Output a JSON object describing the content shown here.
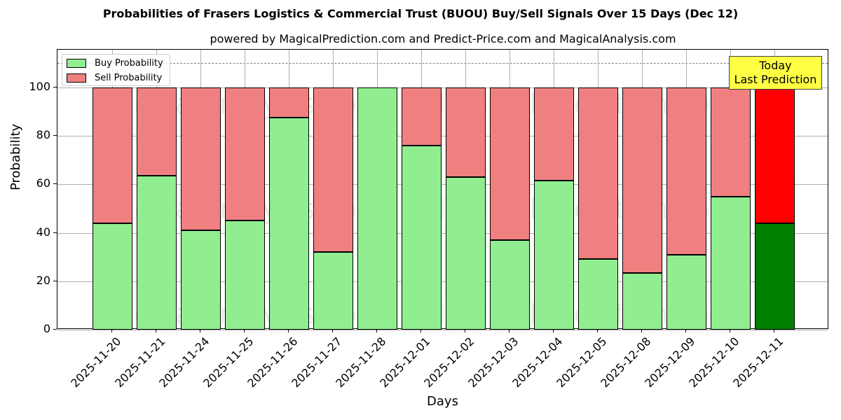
{
  "chart_data": {
    "type": "bar",
    "stacked": true,
    "title": "Probabilities of Frasers Logistics & Commercial Trust (BUOU) Buy/Sell Signals Over 15 Days (Dec 12)",
    "subtitle": "powered by MagicalPrediction.com and Predict-Price.com and MagicalAnalysis.com",
    "xlabel": "Days",
    "ylabel": "Probability",
    "ylim": [
      0,
      115
    ],
    "yticks": [
      0,
      20,
      40,
      60,
      80,
      100
    ],
    "grid": true,
    "legend_position": "upper left",
    "threshold_line": 110,
    "categories": [
      "2025-11-20",
      "2025-11-21",
      "2025-11-24",
      "2025-11-25",
      "2025-11-26",
      "2025-11-27",
      "2025-11-28",
      "2025-12-01",
      "2025-12-02",
      "2025-12-03",
      "2025-12-04",
      "2025-12-05",
      "2025-12-08",
      "2025-12-09",
      "2025-12-10",
      "2025-12-11"
    ],
    "series": [
      {
        "name": "Buy Probability",
        "color": "#90ee90",
        "values": [
          44,
          63.6,
          41,
          45,
          87.6,
          32,
          100,
          76,
          63,
          37,
          61.6,
          29.2,
          23.4,
          31,
          55,
          44
        ]
      },
      {
        "name": "Sell Probability",
        "color": "#f08080",
        "values": [
          56,
          36.4,
          59,
          55,
          12.4,
          68,
          0,
          24,
          37,
          63,
          38.4,
          70.8,
          76.6,
          69,
          45,
          56
        ]
      }
    ],
    "highlight": {
      "index": 15,
      "buy_color": "#008000",
      "sell_color": "#ff0000"
    },
    "annotation": {
      "line1": "Today",
      "line2": "Last Prediction",
      "bg": "#ffff44"
    },
    "watermarks": [
      "MagicalAnalysis.com",
      "MagicalPrediction.com"
    ]
  }
}
